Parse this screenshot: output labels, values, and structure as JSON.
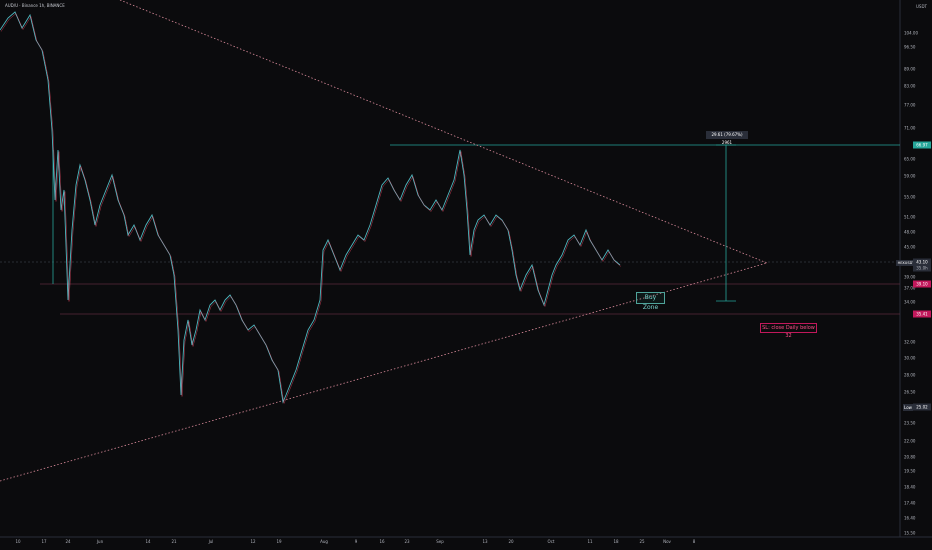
{
  "symbol_title": "AUD/U · Binance 1h, BINANCE",
  "currency": "USDT",
  "price_ticks": [
    "104.00",
    "96.50",
    "89.00",
    "83.00",
    "77.00",
    "71.00",
    "65.00",
    "59.00",
    "55.00",
    "51.00",
    "48.00",
    "45.00",
    "42.00",
    "39.00",
    "37.00",
    "34.00",
    "32.00",
    "30.00",
    "28.00",
    "26.50",
    "25.00",
    "23.50",
    "22.00",
    "20.80",
    "19.50",
    "18.40",
    "17.40",
    "16.40",
    "15.50"
  ],
  "price_labels": {
    "current_symbol": "HEXUSDT",
    "current": "43.10",
    "current_sub": "35.0h",
    "upper_target": "66.97",
    "buy_level": "39.10",
    "lower_level": "35.41",
    "low_tag": "Low",
    "low_value": "25.02"
  },
  "time_ticks": [
    "10",
    "17",
    "24",
    "Jun",
    "14",
    "21",
    "Jul",
    "12",
    "19",
    "Aug",
    "9",
    "16",
    "23",
    "Sep",
    "13",
    "20",
    "Oct",
    "11",
    "18",
    "25",
    "Nov",
    "8"
  ],
  "annotations": {
    "buy_zone": "Buy Zone",
    "stop_loss": "SL: close Daily below 32",
    "measure": "29.61 (79.67%) 2961"
  },
  "colors": {
    "background": "#0b0b0d",
    "candle_up": "#5ad7e0",
    "candle_down": "#ff4d6a",
    "trendline": "#d98a9a",
    "level_teal": "#26a69a",
    "level_pink": "#c2185b"
  }
}
